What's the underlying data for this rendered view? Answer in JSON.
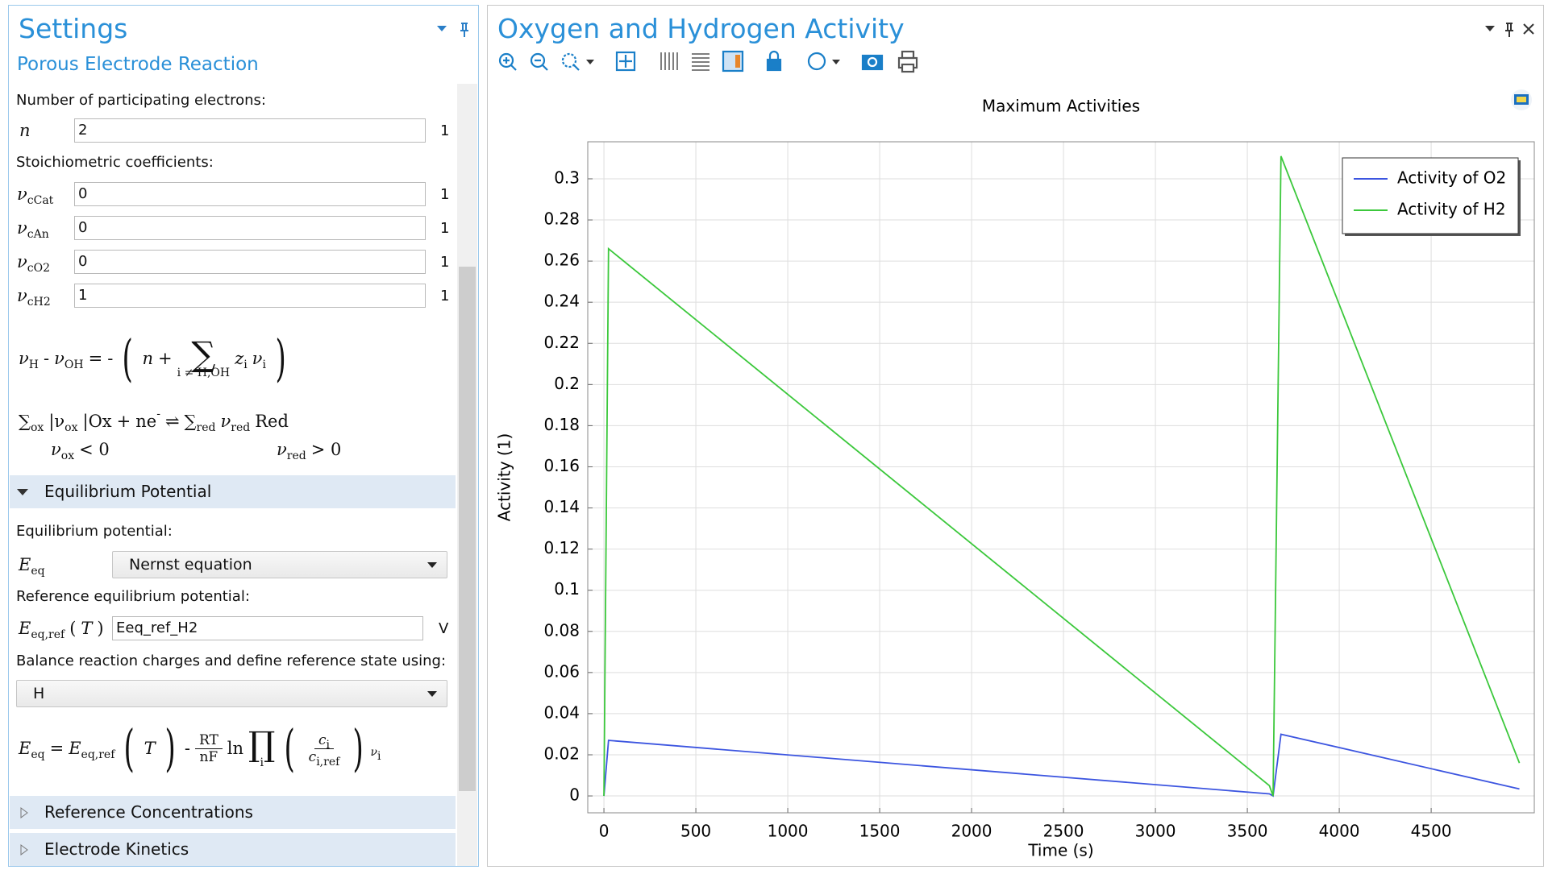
{
  "settings": {
    "title": "Settings",
    "subtitle": "Porous Electrode Reaction",
    "electrons_label": "Number of participating electrons:",
    "n": {
      "symbol": "n",
      "value": "2",
      "unit": "1"
    },
    "stoich_label": "Stoichiometric coefficients:",
    "coefficients": [
      {
        "symbol": [
          {
            "text": "ν",
            "sub": "cCat"
          }
        ],
        "value": "0",
        "unit": "1"
      },
      {
        "symbol": [
          {
            "text": "ν",
            "sub": "cAn"
          }
        ],
        "value": "0",
        "unit": "1"
      },
      {
        "symbol": [
          {
            "text": "ν",
            "sub": "cO2"
          }
        ],
        "value": "0",
        "unit": "1"
      },
      {
        "symbol": [
          {
            "text": "ν",
            "sub": "cH2"
          }
        ],
        "value": "1",
        "unit": "1"
      }
    ],
    "charge_equation": [
      {
        "text": "ν",
        "sub": "H"
      },
      {
        "text": "-"
      },
      {
        "text": "ν",
        "sub": "OH"
      },
      {
        "text": "="
      },
      {
        "text": "-"
      },
      {
        "text": "("
      },
      {
        "text": "n"
      },
      {
        "text": "+"
      },
      {
        "text": "∑",
        "under": "i ≠ H,OH"
      },
      {
        "text": "z",
        "sub": "i"
      },
      {
        "text": "ν",
        "sub": "i"
      },
      {
        "text": ")"
      }
    ],
    "reaction_equation": [
      {
        "text": "∑",
        "sub": "ox"
      },
      {
        "text": "|ν",
        "sub": "ox"
      },
      {
        "text": "|Ox"
      },
      {
        "text": "+"
      },
      {
        "text": "ne",
        "sup": "-"
      },
      {
        "text": "⇌"
      },
      {
        "text": "∑",
        "sub": "red"
      },
      {
        "text": "ν",
        "sub": "red"
      },
      {
        "text": "Red"
      }
    ],
    "reaction_conditions": [
      [
        {
          "text": "ν",
          "sub": "ox"
        },
        {
          "text": "< 0"
        }
      ],
      [
        {
          "text": "ν",
          "sub": "red"
        },
        {
          "text": "> 0"
        }
      ]
    ],
    "equilibrium_section": "Equilibrium Potential",
    "equilibrium_label": "Equilibrium potential:",
    "eeq_symbol": [
      {
        "text": "E",
        "sub": "eq"
      }
    ],
    "eeq_value": "Nernst equation",
    "reference_label": "Reference equilibrium potential:",
    "eref_symbol": [
      {
        "text": "E",
        "sub": "eq,ref"
      },
      {
        "text": "("
      },
      {
        "text": "T"
      },
      {
        "text": ")"
      }
    ],
    "eref_value": "Eeq_ref_H2",
    "eref_unit": "V",
    "balance_label": "Balance reaction charges and define reference state using:",
    "balance_value": "H",
    "nernst_equation": [
      {
        "text": "E",
        "sub": "eq"
      },
      {
        "text": "="
      },
      {
        "text": "E",
        "sub": "eq,ref"
      },
      {
        "text": "("
      },
      {
        "text": "T"
      },
      {
        "text": ")"
      },
      {
        "text": "-"
      },
      {
        "num": [
          {
            "text": "RT"
          }
        ],
        "den": [
          {
            "text": "nF"
          }
        ]
      },
      {
        "text": "ln"
      },
      {
        "text": "∏",
        "under": "i"
      },
      {
        "text": "("
      },
      {
        "num": [
          {
            "text": "c",
            "sub": "i"
          }
        ],
        "den": [
          {
            "text": "c",
            "sub": "i,ref"
          }
        ]
      },
      {
        "text": ")",
        "sup": [
          {
            "text": "ν",
            "sub": "i"
          }
        ]
      }
    ],
    "sections": [
      "Reference Concentrations",
      "Electrode Kinetics"
    ]
  },
  "plot_window": {
    "title": "Oxygen and Hydrogen Activity"
  },
  "chart_data": {
    "type": "line",
    "title": "Maximum Activities",
    "xlabel": "Time (s)",
    "ylabel": "Activity (1)",
    "x": [
      0,
      25,
      3620,
      3640,
      3683,
      4980
    ],
    "series": [
      {
        "name": "Activity of O2",
        "color": "#3c55e0",
        "values": [
          0,
          0.027,
          0.001,
          0,
          0.03,
          0.0034
        ]
      },
      {
        "name": "Activity of H2",
        "color": "#3cc83c",
        "values": [
          0,
          0.266,
          0.005,
          0,
          0.311,
          0.016
        ]
      }
    ],
    "xlim": [
      -88,
      5061
    ],
    "ylim": [
      -0.0082,
      0.318
    ],
    "xticks": [
      0,
      500,
      1000,
      1500,
      2000,
      2500,
      3000,
      3500,
      4000,
      4500
    ],
    "yticks": [
      0,
      0.02,
      0.04,
      0.06,
      0.08,
      0.1,
      0.12,
      0.14,
      0.16,
      0.18,
      0.2,
      0.22,
      0.24,
      0.26,
      0.28,
      0.3
    ],
    "grid": true,
    "legend": "upper right"
  }
}
